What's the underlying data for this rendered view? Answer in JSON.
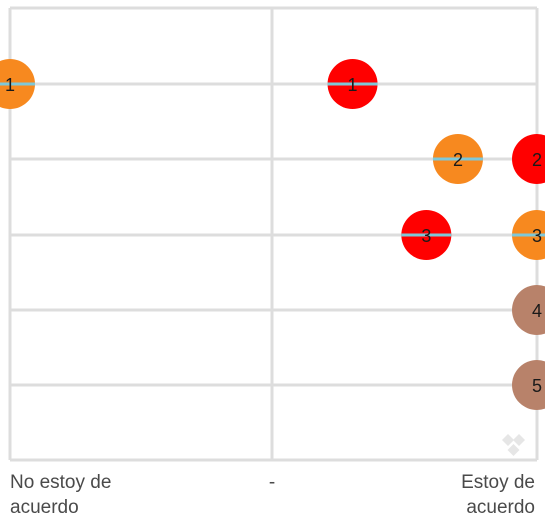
{
  "chart_data": {
    "type": "scatter",
    "title": "",
    "x_tick_labels": [
      "No estoy de\nacuerdo",
      "-",
      "Estoy de\nacuerdo"
    ],
    "xlim": [
      0,
      100
    ],
    "rows": 5,
    "grid": true,
    "points": [
      {
        "label": "1",
        "x": 0,
        "row": 1,
        "color": "#f7891f",
        "marker": true
      },
      {
        "label": "1",
        "x": 65,
        "row": 1,
        "color": "#ff0000",
        "marker": true
      },
      {
        "label": "2",
        "x": 85,
        "row": 2,
        "color": "#f7891f",
        "marker": true
      },
      {
        "label": "2",
        "x": 100,
        "row": 2,
        "color": "#ff0000",
        "marker": false
      },
      {
        "label": "3",
        "x": 79,
        "row": 3,
        "color": "#ff0000",
        "marker": true
      },
      {
        "label": "3",
        "x": 100,
        "row": 3,
        "color": "#f7891f",
        "marker": true
      },
      {
        "label": "4",
        "x": 100,
        "row": 4,
        "color": "#b8826a",
        "marker": false
      },
      {
        "label": "5",
        "x": 100,
        "row": 5,
        "color": "#b8826a",
        "marker": false
      }
    ],
    "colors": {
      "grid": "#dddddd",
      "marker": "#7ec8d8",
      "text": "#1a1a1a"
    }
  }
}
